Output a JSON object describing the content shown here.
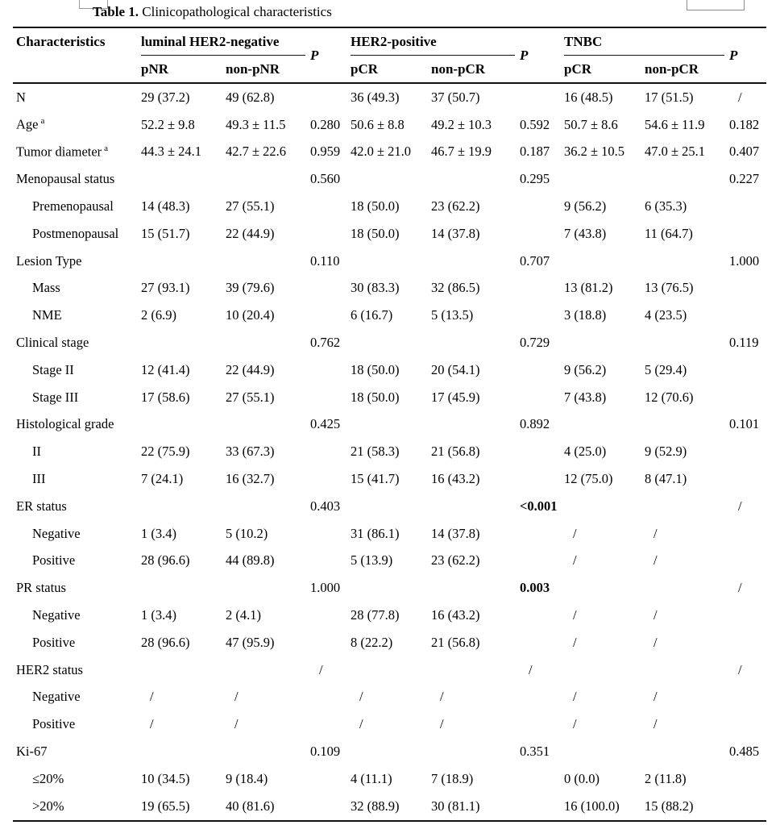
{
  "title": {
    "label": "Table 1.",
    "text": " Clinicopathological characteristics"
  },
  "table": {
    "corner_header": "Characteristics",
    "p_label": "P",
    "groups": [
      {
        "label": "luminal HER2-negative",
        "sub": [
          "pNR",
          "non-pNR"
        ]
      },
      {
        "label": "HER2-positive",
        "sub": [
          "pCR",
          "non-pCR"
        ]
      },
      {
        "label": "TNBC",
        "sub": [
          "pCR",
          "non-pCR"
        ]
      }
    ],
    "rows": [
      {
        "label": "N",
        "cells": [
          "29 (37.2)",
          "49 (62.8)",
          "",
          "36 (49.3)",
          "37 (50.7)",
          "",
          "16 (48.5)",
          "17 (51.5)",
          "/"
        ]
      },
      {
        "label": "Age",
        "sup": "a",
        "cells": [
          "52.2 ± 9.8",
          "49.3 ± 11.5",
          "0.280",
          "50.6 ± 8.8",
          "49.2 ± 10.3",
          "0.592",
          "50.7 ± 8.6",
          "54.6 ± 11.9",
          "0.182"
        ]
      },
      {
        "label": "Tumor diameter",
        "sup": "a",
        "cells": [
          "44.3 ± 24.1",
          "42.7 ± 22.6",
          "0.959",
          "42.0 ± 21.0",
          "46.7 ± 19.9",
          "0.187",
          "36.2 ± 10.5",
          "47.0 ± 25.1",
          "0.407"
        ]
      },
      {
        "label": "Menopausal status",
        "cells": [
          "",
          "",
          "0.560",
          "",
          "",
          "0.295",
          "",
          "",
          "0.227"
        ]
      },
      {
        "label": "Premenopausal",
        "indent": true,
        "cells": [
          "14 (48.3)",
          "27 (55.1)",
          "",
          "18 (50.0)",
          "23 (62.2)",
          "",
          "9 (56.2)",
          "6 (35.3)",
          ""
        ]
      },
      {
        "label": "Postmenopausal",
        "indent": true,
        "cells": [
          "15 (51.7)",
          "22 (44.9)",
          "",
          "18 (50.0)",
          "14 (37.8)",
          "",
          "7 (43.8)",
          "11 (64.7)",
          ""
        ]
      },
      {
        "label": "Lesion Type",
        "cells": [
          "",
          "",
          "0.110",
          "",
          "",
          "0.707",
          "",
          "",
          "1.000"
        ]
      },
      {
        "label": "Mass",
        "indent": true,
        "cells": [
          "27 (93.1)",
          "39 (79.6)",
          "",
          "30 (83.3)",
          "32 (86.5)",
          "",
          "13 (81.2)",
          "13 (76.5)",
          ""
        ]
      },
      {
        "label": "NME",
        "indent": true,
        "cells": [
          "2 (6.9)",
          "10 (20.4)",
          "",
          "6 (16.7)",
          "5 (13.5)",
          "",
          "3 (18.8)",
          "4 (23.5)",
          ""
        ]
      },
      {
        "label": "Clinical stage",
        "cells": [
          "",
          "",
          "0.762",
          "",
          "",
          "0.729",
          "",
          "",
          "0.119"
        ]
      },
      {
        "label": "Stage II",
        "indent": true,
        "cells": [
          "12 (41.4)",
          "22 (44.9)",
          "",
          "18 (50.0)",
          "20 (54.1)",
          "",
          "9 (56.2)",
          "5 (29.4)",
          ""
        ]
      },
      {
        "label": "Stage III",
        "indent": true,
        "cells": [
          "17 (58.6)",
          "27 (55.1)",
          "",
          "18 (50.0)",
          "17 (45.9)",
          "",
          "7 (43.8)",
          "12 (70.6)",
          ""
        ]
      },
      {
        "label": "Histological grade",
        "cells": [
          "",
          "",
          "0.425",
          "",
          "",
          "0.892",
          "",
          "",
          "0.101"
        ]
      },
      {
        "label": "II",
        "indent": true,
        "cells": [
          "22 (75.9)",
          "33 (67.3)",
          "",
          "21 (58.3)",
          "21 (56.8)",
          "",
          "4 (25.0)",
          "9 (52.9)",
          ""
        ]
      },
      {
        "label": "III",
        "indent": true,
        "cells": [
          "7 (24.1)",
          "16 (32.7)",
          "",
          "15 (41.7)",
          "16 (43.2)",
          "",
          "12 (75.0)",
          "8 (47.1)",
          ""
        ]
      },
      {
        "label": "ER status",
        "bold_cells": [
          5
        ],
        "cells": [
          "",
          "",
          "0.403",
          "",
          "",
          "<0.001",
          "",
          "",
          "/"
        ]
      },
      {
        "label": "Negative",
        "indent": true,
        "cells": [
          "1 (3.4)",
          "5 (10.2)",
          "",
          "31 (86.1)",
          "14 (37.8)",
          "",
          "/",
          "/",
          ""
        ]
      },
      {
        "label": "Positive",
        "indent": true,
        "cells": [
          "28 (96.6)",
          "44 (89.8)",
          "",
          "5 (13.9)",
          "23 (62.2)",
          "",
          "/",
          "/",
          ""
        ]
      },
      {
        "label": "PR status",
        "bold_cells": [
          5
        ],
        "cells": [
          "",
          "",
          "1.000",
          "",
          "",
          "0.003",
          "",
          "",
          "/"
        ]
      },
      {
        "label": "Negative",
        "indent": true,
        "cells": [
          "1 (3.4)",
          "2 (4.1)",
          "",
          "28 (77.8)",
          "16 (43.2)",
          "",
          "/",
          "/",
          ""
        ]
      },
      {
        "label": "Positive",
        "indent": true,
        "cells": [
          "28 (96.6)",
          "47 (95.9)",
          "",
          "8 (22.2)",
          "21 (56.8)",
          "",
          "/",
          "/",
          ""
        ]
      },
      {
        "label": "HER2 status",
        "cells": [
          "",
          "",
          "/",
          "",
          "",
          "/",
          "",
          "",
          "/"
        ]
      },
      {
        "label": "Negative",
        "indent": true,
        "cells": [
          "/",
          "/",
          "",
          "/",
          "/",
          "",
          "/",
          "/",
          ""
        ]
      },
      {
        "label": "Positive",
        "indent": true,
        "cells": [
          "/",
          "/",
          "",
          "/",
          "/",
          "",
          "/",
          "/",
          ""
        ]
      },
      {
        "label": "Ki-67",
        "cells": [
          "",
          "",
          "0.109",
          "",
          "",
          "0.351",
          "",
          "",
          "0.485"
        ]
      },
      {
        "label": "≤20%",
        "indent": true,
        "cells": [
          "10 (34.5)",
          "9 (18.4)",
          "",
          "4 (11.1)",
          "7 (18.9)",
          "",
          "0 (0.0)",
          "2 (11.8)",
          ""
        ]
      },
      {
        "label": ">20%",
        "indent": true,
        "cells": [
          "19 (65.5)",
          "40 (81.6)",
          "",
          "32 (88.9)",
          "30 (81.1)",
          "",
          "16 (100.0)",
          "15 (88.2)",
          ""
        ]
      }
    ]
  }
}
